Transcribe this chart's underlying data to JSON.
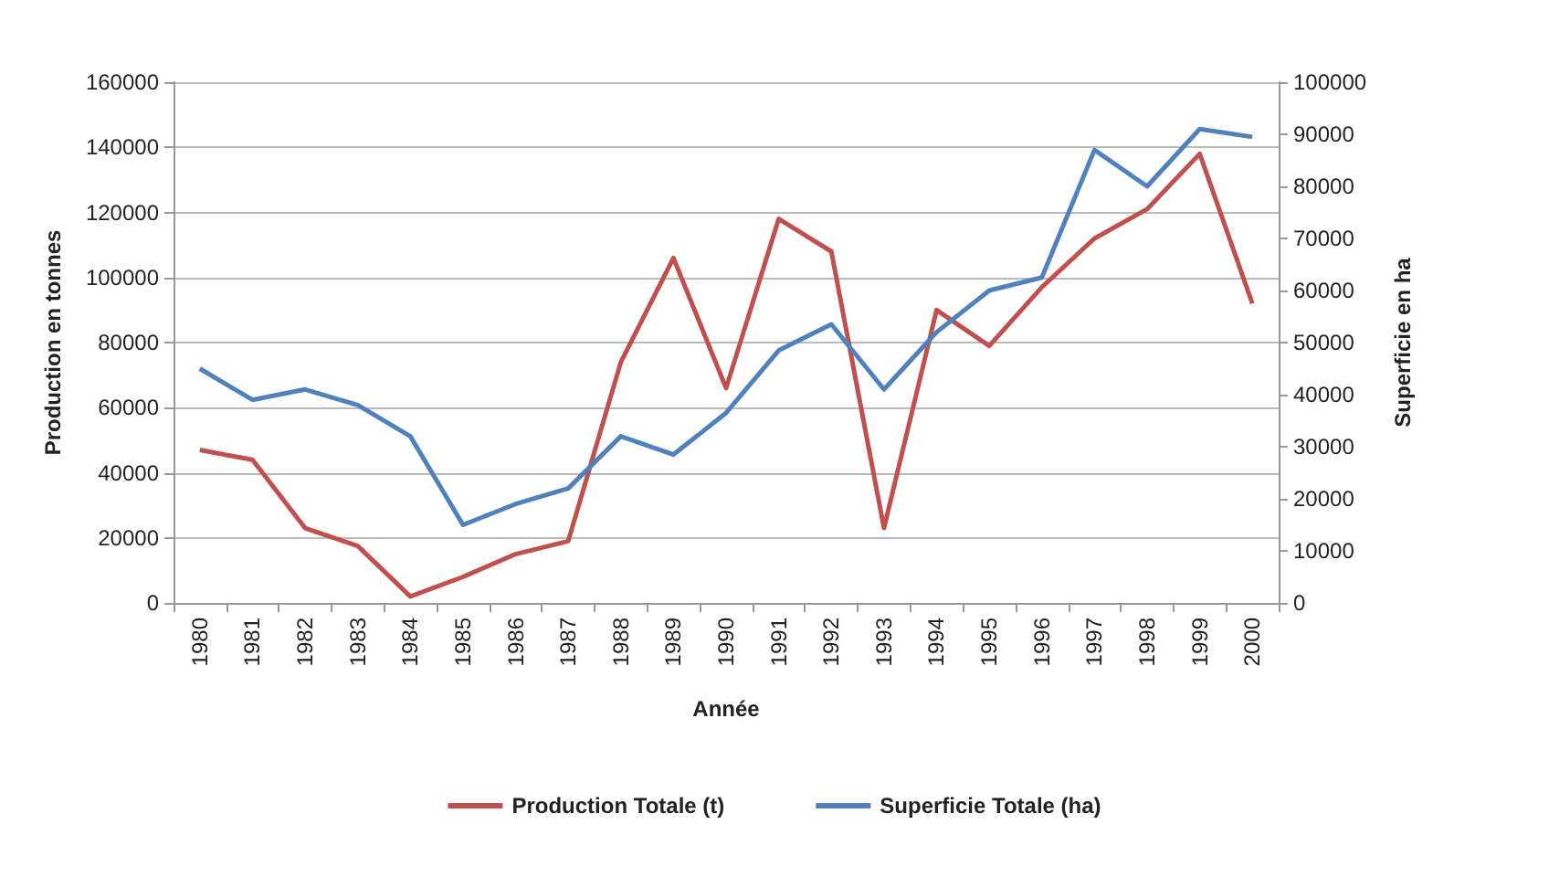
{
  "chart_data": {
    "type": "line",
    "xlabel": "Année",
    "ylabel": "Production en tonnes",
    "y2label": "Superficie en ha",
    "categories": [
      "1980",
      "1981",
      "1982",
      "1983",
      "1984",
      "1985",
      "1986",
      "1987",
      "1988",
      "1989",
      "1990",
      "1991",
      "1992",
      "1993",
      "1994",
      "1995",
      "1996",
      "1997",
      "1998",
      "1999",
      "2000"
    ],
    "series": [
      {
        "name": "Production Totale (t)",
        "color": "#c0504d",
        "values": [
          47000,
          44000,
          23000,
          17500,
          2000,
          8000,
          15000,
          19000,
          74000,
          106000,
          66000,
          118000,
          108000,
          23000,
          90000,
          79000,
          97000,
          112000,
          121000,
          138000,
          92000
        ]
      },
      {
        "name": "Superficie Totale (ha)",
        "color": "#4f81bd",
        "axis": "y2",
        "values": [
          45000,
          39000,
          41000,
          38000,
          32000,
          15000,
          19000,
          22000,
          32000,
          28500,
          36500,
          48500,
          53500,
          41000,
          52000,
          60000,
          62500,
          87000,
          80000,
          91000,
          89500
        ]
      }
    ],
    "ylim": [
      0,
      160000
    ],
    "yticks": [
      0,
      20000,
      40000,
      60000,
      80000,
      100000,
      120000,
      140000,
      160000
    ],
    "y2lim": [
      0,
      100000
    ],
    "y2ticks": [
      0,
      10000,
      20000,
      30000,
      40000,
      50000,
      60000,
      70000,
      80000,
      90000,
      100000
    ],
    "grid": "y",
    "legend": "bottom",
    "marker": "none",
    "line_style": "solid"
  }
}
